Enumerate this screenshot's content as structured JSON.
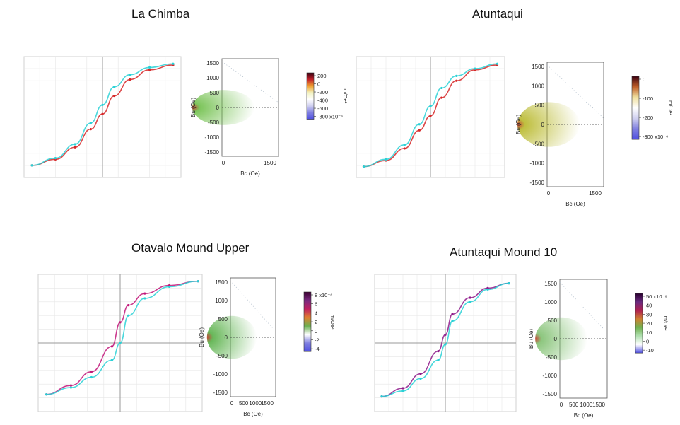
{
  "chart_data": [
    {
      "type": "line",
      "title": "La Chimba",
      "xlabel": "",
      "ylabel": "",
      "xlim": [
        -1,
        1
      ],
      "ylim": [
        -1,
        1
      ],
      "grid": true,
      "series": [
        {
          "color": "#d62728",
          "x": [
            -0.9,
            -0.6,
            -0.35,
            -0.15,
            0,
            0.15,
            0.35,
            0.6,
            0.9
          ],
          "values": [
            -0.8,
            -0.7,
            -0.5,
            -0.2,
            0.05,
            0.35,
            0.62,
            0.78,
            0.86
          ]
        },
        {
          "color": "#2ad1d6",
          "x": [
            -0.9,
            -0.6,
            -0.35,
            -0.15,
            0,
            0.15,
            0.35,
            0.6,
            0.9
          ],
          "values": [
            -0.8,
            -0.68,
            -0.45,
            -0.1,
            0.2,
            0.5,
            0.7,
            0.82,
            0.88
          ]
        }
      ]
    },
    {
      "type": "heatmap",
      "xlabel": "Bc (Oe)",
      "ylabel": "Bu (Oe)",
      "xticks": [
        "0",
        "1500"
      ],
      "yticks": [
        "1500",
        "1000",
        "500",
        "0",
        "-500",
        "-1000",
        "-1500"
      ],
      "colorbar_label": "m/Oe²",
      "colorbar_ticks": [
        "200",
        "0",
        "-200",
        "-400",
        "-600",
        "-800 x10⁻⁶"
      ]
    },
    {
      "type": "line",
      "title": "Atuntaqui",
      "xlabel": "",
      "ylabel": "",
      "xlim": [
        -1,
        1
      ],
      "ylim": [
        -1,
        1
      ],
      "grid": true,
      "series": [
        {
          "color": "#d62728",
          "x": [
            -0.9,
            -0.6,
            -0.35,
            -0.15,
            0,
            0.15,
            0.35,
            0.6,
            0.9
          ],
          "values": [
            -0.82,
            -0.72,
            -0.52,
            -0.22,
            0.02,
            0.32,
            0.6,
            0.78,
            0.86
          ]
        },
        {
          "color": "#2ad1d6",
          "x": [
            -0.9,
            -0.6,
            -0.35,
            -0.15,
            0,
            0.15,
            0.35,
            0.6,
            0.9
          ],
          "values": [
            -0.82,
            -0.7,
            -0.46,
            -0.12,
            0.18,
            0.48,
            0.68,
            0.8,
            0.88
          ]
        }
      ]
    },
    {
      "type": "heatmap",
      "xlabel": "Bc (Oe)",
      "ylabel": "Bu (Oe)",
      "xticks": [
        "0",
        "1500"
      ],
      "yticks": [
        "1500",
        "1000",
        "500",
        "0",
        "-500",
        "-1000",
        "-1500"
      ],
      "colorbar_label": "m/Oe²",
      "colorbar_ticks": [
        "0",
        "-100",
        "-200",
        "-300 x10⁻⁶"
      ]
    },
    {
      "type": "line",
      "title": "Otavalo Mound Upper",
      "xlabel": "",
      "ylabel": "",
      "xlim": [
        -1,
        1
      ],
      "ylim": [
        -1,
        1
      ],
      "grid": true,
      "series": [
        {
          "color": "#c2187a",
          "x": [
            -0.9,
            -0.6,
            -0.35,
            -0.1,
            0,
            0.1,
            0.3,
            0.6,
            0.95
          ],
          "values": [
            -0.75,
            -0.62,
            -0.42,
            -0.05,
            0.3,
            0.55,
            0.72,
            0.84,
            0.9
          ]
        },
        {
          "color": "#2ad1d6",
          "x": [
            -0.9,
            -0.6,
            -0.35,
            -0.1,
            0,
            0.1,
            0.3,
            0.6,
            0.95
          ],
          "values": [
            -0.75,
            -0.65,
            -0.5,
            -0.25,
            0.0,
            0.4,
            0.65,
            0.82,
            0.9
          ]
        }
      ]
    },
    {
      "type": "heatmap",
      "xlabel": "Bc (Oe)",
      "ylabel": "Bu (Oe)",
      "xticks": [
        "0",
        "500",
        "1000",
        "1500"
      ],
      "yticks": [
        "1500",
        "1000",
        "500",
        "0",
        "-500",
        "-1000",
        "-1500"
      ],
      "colorbar_label": "m/Oe²",
      "colorbar_ticks": [
        "8 x10⁻⁶",
        "6",
        "4",
        "2",
        "0",
        "-2",
        "-4"
      ]
    },
    {
      "type": "line",
      "title": "Atuntaqui  Mound 10",
      "xlabel": "",
      "ylabel": "",
      "xlim": [
        -1,
        1
      ],
      "ylim": [
        -1,
        1
      ],
      "grid": true,
      "series": [
        {
          "color": "#8e1a8a",
          "x": [
            -0.9,
            -0.6,
            -0.35,
            -0.1,
            0,
            0.1,
            0.35,
            0.6,
            0.9
          ],
          "values": [
            -0.78,
            -0.66,
            -0.45,
            -0.12,
            0.12,
            0.42,
            0.66,
            0.8,
            0.87
          ]
        },
        {
          "color": "#2ad1d6",
          "x": [
            -0.9,
            -0.6,
            -0.35,
            -0.1,
            0,
            0.1,
            0.35,
            0.6,
            0.9
          ],
          "values": [
            -0.78,
            -0.7,
            -0.52,
            -0.25,
            -0.02,
            0.32,
            0.6,
            0.78,
            0.87
          ]
        }
      ]
    },
    {
      "type": "heatmap",
      "xlabel": "Bc (Oe)",
      "ylabel": "Bu (Oe)",
      "xticks": [
        "0",
        "500",
        "1000",
        "1500"
      ],
      "yticks": [
        "1500",
        "1000",
        "500",
        "0",
        "-500",
        "-1000",
        "-1500"
      ],
      "colorbar_label": "m/Oe²",
      "colorbar_ticks": [
        "50 x10⁻⁶",
        "40",
        "30",
        "20",
        "10",
        "0",
        "-10"
      ]
    }
  ],
  "colors": {
    "grid": "#e6e6e6",
    "axis": "#999999",
    "cbar_top_a": "#3a0010",
    "cbar_mid_green": "#5ab04b",
    "cbar_low_blue": "#5a5ae6"
  }
}
